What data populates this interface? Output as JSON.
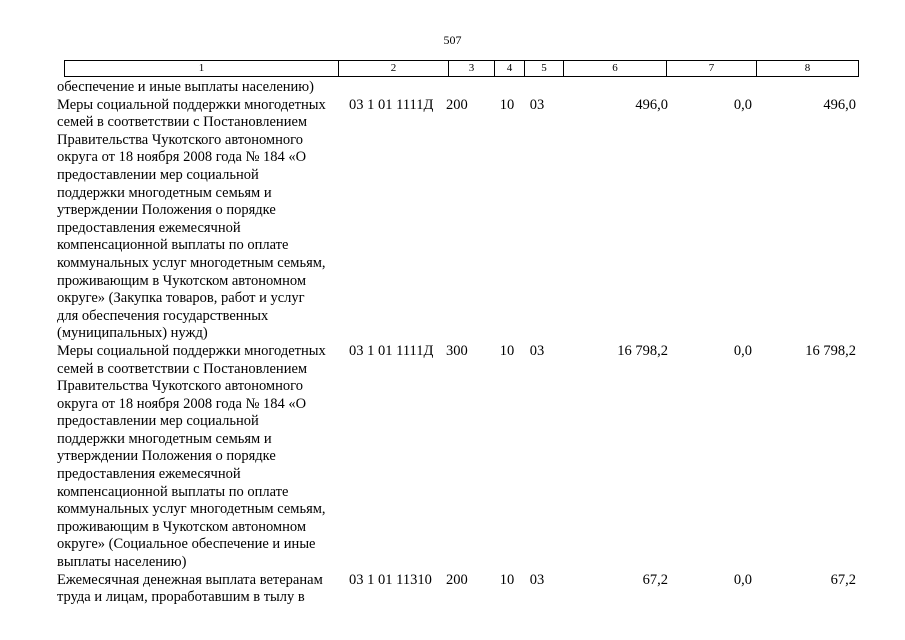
{
  "page": {
    "number": "507"
  },
  "table": {
    "header_columns": [
      "1",
      "2",
      "3",
      "4",
      "5",
      "6",
      "7",
      "8"
    ],
    "rows": [
      {
        "lines": [
          "обеспечение и иные выплаты населению)"
        ]
      },
      {
        "lines": [
          "Меры социальной поддержки многодетных",
          "семей в соответствии с Постановлением",
          "Правительства Чукотского автономного",
          "округа от 18 ноября 2008 года № 184 «О",
          "предоставлении мер социальной",
          "поддержки многодетным семьям и",
          "утверждении Положения о порядке",
          "предоставления ежемесячной",
          "компенсационной выплаты по оплате",
          "коммунальных услуг многодетным семьям,",
          "проживающим в Чукотском автономном",
          "округе» (Закупка товаров, работ и услуг",
          "для обеспечения государственных",
          "(муниципальных) нужд)"
        ],
        "col2": "03 1 01 1111Д",
        "col3": "200",
        "col4": "10",
        "col5": "03",
        "col6": "496,0",
        "col7": "0,0",
        "col8": "496,0"
      },
      {
        "lines": [
          "Меры социальной поддержки многодетных",
          "семей в соответствии с Постановлением",
          "Правительства Чукотского автономного",
          "округа от 18 ноября 2008 года № 184 «О",
          "предоставлении мер социальной",
          "поддержки многодетным семьям и",
          "утверждении Положения о порядке",
          "предоставления ежемесячной",
          "компенсационной выплаты по оплате",
          "коммунальных услуг многодетным семьям,",
          "проживающим в Чукотском автономном",
          "округе» (Социальное обеспечение и иные",
          "выплаты населению)"
        ],
        "col2": "03 1 01 1111Д",
        "col3": "300",
        "col4": "10",
        "col5": "03",
        "col6": "16 798,2",
        "col7": "0,0",
        "col8": "16 798,2"
      },
      {
        "lines": [
          "Ежемесячная денежная выплата ветеранам",
          "труда и лицам, проработавшим в тылу в"
        ],
        "col2": "03 1 01 11310",
        "col3": "200",
        "col4": "10",
        "col5": "03",
        "col6": "67,2",
        "col7": "0,0",
        "col8": "67,2"
      }
    ]
  }
}
